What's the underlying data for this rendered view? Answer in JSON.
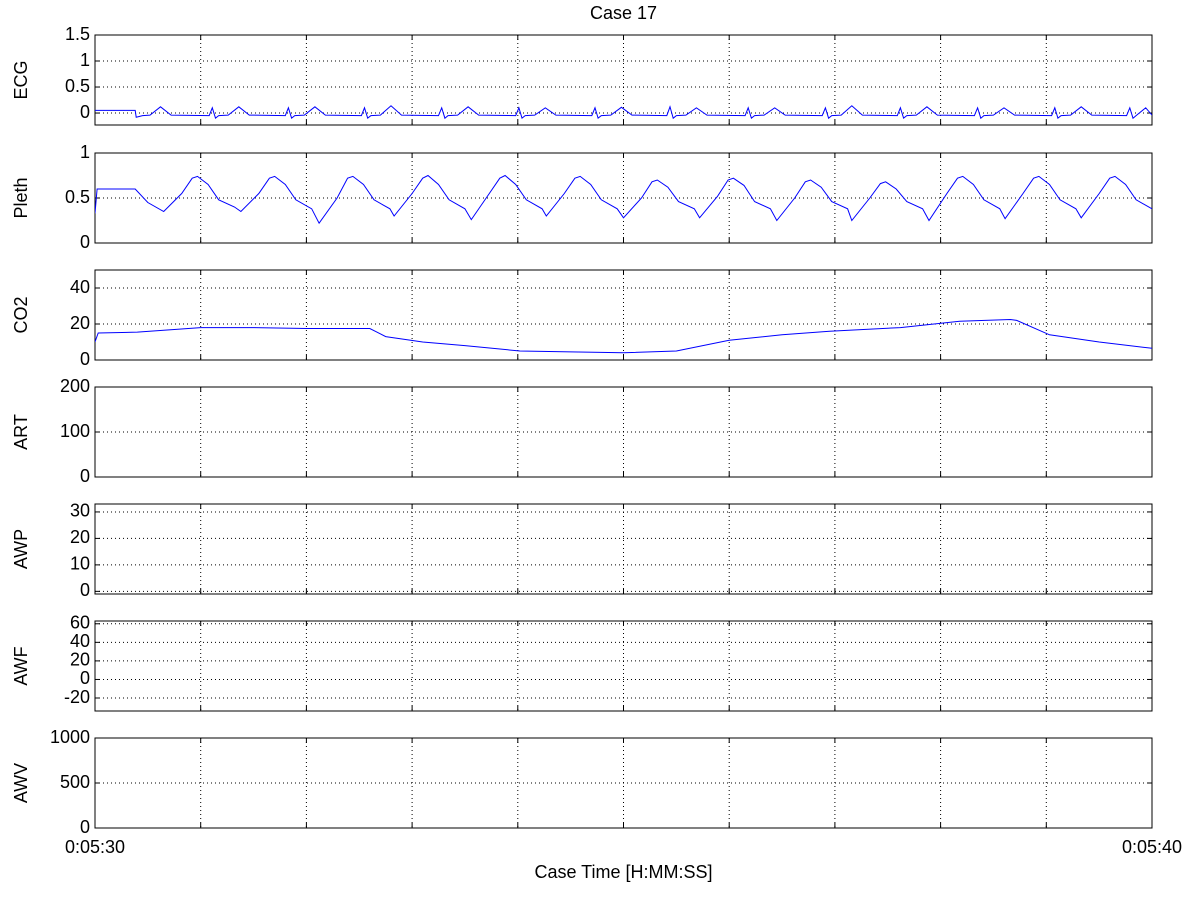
{
  "chart_data": [
    {
      "type": "line",
      "title": "Case 17",
      "ylabel": "ECG",
      "color": "#0000ff",
      "grid": true,
      "xlim": [
        330,
        340
      ],
      "xticks": [
        {
          "value": 331,
          "label": null
        },
        {
          "value": 332,
          "label": null
        },
        {
          "value": 333,
          "label": null
        },
        {
          "value": 334,
          "label": null
        },
        {
          "value": 335,
          "label": null
        },
        {
          "value": 336,
          "label": null
        },
        {
          "value": 337,
          "label": null
        },
        {
          "value": 338,
          "label": null
        },
        {
          "value": 339,
          "label": null
        }
      ],
      "ylim": [
        -0.23,
        1.5
      ],
      "yticks": [
        0,
        0.5,
        1,
        1.5
      ],
      "x": [
        330,
        330.38,
        330.39,
        330.45,
        330.52,
        330.62,
        330.72,
        331.08,
        331.11,
        331.14,
        331.17,
        331.26,
        331.36,
        331.46,
        331.8,
        331.83,
        331.86,
        331.89,
        331.98,
        332.08,
        332.18,
        332.52,
        332.55,
        332.58,
        332.61,
        332.7,
        332.8,
        332.9,
        333.25,
        333.28,
        333.31,
        333.34,
        333.43,
        333.53,
        333.63,
        333.98,
        334.01,
        334.04,
        334.07,
        334.16,
        334.26,
        334.36,
        334.7,
        334.73,
        334.76,
        334.79,
        334.88,
        334.98,
        335.08,
        335.41,
        335.44,
        335.47,
        335.5,
        335.59,
        335.69,
        335.79,
        336.15,
        336.18,
        336.21,
        336.24,
        336.33,
        336.43,
        336.53,
        336.88,
        336.91,
        336.94,
        336.97,
        337.06,
        337.16,
        337.26,
        337.59,
        337.62,
        337.65,
        337.68,
        337.77,
        337.87,
        337.97,
        338.32,
        338.35,
        338.38,
        338.41,
        338.5,
        338.6,
        338.7,
        339.05,
        339.08,
        339.11,
        339.14,
        339.23,
        339.33,
        339.43,
        339.76,
        339.79,
        339.82,
        339.85,
        339.94,
        340
      ],
      "values": [
        0.05,
        0.05,
        -0.08,
        -0.05,
        -0.04,
        0.12,
        -0.04,
        -0.05,
        0.1,
        -0.1,
        -0.05,
        -0.04,
        0.12,
        -0.04,
        -0.05,
        0.1,
        -0.1,
        -0.05,
        -0.04,
        0.12,
        -0.04,
        -0.05,
        0.1,
        -0.1,
        -0.05,
        -0.04,
        0.14,
        -0.04,
        -0.05,
        0.1,
        -0.1,
        -0.05,
        -0.04,
        0.12,
        -0.04,
        -0.05,
        0.1,
        -0.1,
        -0.05,
        -0.04,
        0.1,
        -0.04,
        -0.05,
        0.1,
        -0.1,
        -0.05,
        -0.04,
        0.11,
        -0.04,
        -0.05,
        0.12,
        -0.1,
        -0.05,
        -0.04,
        0.1,
        -0.04,
        -0.05,
        0.1,
        -0.1,
        -0.05,
        -0.04,
        0.1,
        -0.04,
        -0.05,
        0.1,
        -0.1,
        -0.05,
        -0.04,
        0.14,
        -0.04,
        -0.05,
        0.1,
        -0.1,
        -0.05,
        -0.04,
        0.12,
        -0.04,
        -0.05,
        0.1,
        -0.1,
        -0.05,
        -0.04,
        0.1,
        -0.04,
        -0.05,
        0.1,
        -0.1,
        -0.05,
        -0.04,
        0.12,
        -0.04,
        -0.05,
        0.1,
        -0.1,
        -0.05,
        0.1,
        -0.04
      ]
    },
    {
      "type": "line",
      "ylabel": "Pleth",
      "color": "#0000ff",
      "grid": true,
      "xlim": [
        330,
        340
      ],
      "xticks": [
        {
          "value": 331,
          "label": null
        },
        {
          "value": 332,
          "label": null
        },
        {
          "value": 333,
          "label": null
        },
        {
          "value": 334,
          "label": null
        },
        {
          "value": 335,
          "label": null
        },
        {
          "value": 336,
          "label": null
        },
        {
          "value": 337,
          "label": null
        },
        {
          "value": 338,
          "label": null
        },
        {
          "value": 339,
          "label": null
        }
      ],
      "ylim": [
        0,
        1
      ],
      "yticks": [
        0,
        0.5,
        1
      ],
      "x": [
        330,
        330.02,
        330.38,
        330.5,
        330.65,
        330.82,
        330.92,
        330.97,
        331.07,
        331.17,
        331.32,
        331.38,
        331.55,
        331.65,
        331.7,
        331.8,
        331.9,
        332.05,
        332.12,
        332.29,
        332.39,
        332.44,
        332.54,
        332.64,
        332.79,
        332.83,
        333,
        333.1,
        333.15,
        333.25,
        333.35,
        333.5,
        333.56,
        333.73,
        333.83,
        333.88,
        333.98,
        334.08,
        334.23,
        334.27,
        334.44,
        334.54,
        334.59,
        334.69,
        334.79,
        334.94,
        335,
        335.17,
        335.27,
        335.32,
        335.42,
        335.52,
        335.67,
        335.72,
        335.89,
        335.99,
        336.04,
        336.14,
        336.24,
        336.39,
        336.45,
        336.62,
        336.72,
        336.77,
        336.87,
        336.97,
        337.12,
        337.16,
        337.33,
        337.43,
        337.48,
        337.58,
        337.68,
        337.83,
        337.89,
        338.06,
        338.16,
        338.21,
        338.31,
        338.41,
        338.56,
        338.61,
        338.78,
        338.88,
        338.93,
        339.03,
        339.13,
        339.28,
        339.33,
        339.5,
        339.6,
        339.65,
        339.75,
        339.85,
        340
      ],
      "values": [
        0.33,
        0.6,
        0.6,
        0.45,
        0.35,
        0.55,
        0.72,
        0.74,
        0.65,
        0.48,
        0.4,
        0.35,
        0.55,
        0.72,
        0.74,
        0.65,
        0.48,
        0.38,
        0.22,
        0.5,
        0.72,
        0.74,
        0.65,
        0.48,
        0.38,
        0.3,
        0.55,
        0.72,
        0.75,
        0.65,
        0.48,
        0.38,
        0.26,
        0.55,
        0.72,
        0.75,
        0.65,
        0.48,
        0.38,
        0.3,
        0.55,
        0.72,
        0.74,
        0.65,
        0.48,
        0.38,
        0.28,
        0.5,
        0.68,
        0.7,
        0.62,
        0.46,
        0.38,
        0.28,
        0.52,
        0.7,
        0.72,
        0.64,
        0.46,
        0.38,
        0.25,
        0.5,
        0.68,
        0.7,
        0.62,
        0.46,
        0.38,
        0.25,
        0.5,
        0.66,
        0.68,
        0.6,
        0.46,
        0.38,
        0.25,
        0.55,
        0.72,
        0.74,
        0.65,
        0.48,
        0.38,
        0.27,
        0.55,
        0.72,
        0.74,
        0.65,
        0.48,
        0.38,
        0.28,
        0.55,
        0.72,
        0.74,
        0.65,
        0.48,
        0.38
      ]
    },
    {
      "type": "line",
      "ylabel": "CO2",
      "color": "#0000ff",
      "grid": true,
      "xlim": [
        330,
        340
      ],
      "xticks": [
        {
          "value": 331,
          "label": null
        },
        {
          "value": 332,
          "label": null
        },
        {
          "value": 333,
          "label": null
        },
        {
          "value": 334,
          "label": null
        },
        {
          "value": 335,
          "label": null
        },
        {
          "value": 336,
          "label": null
        },
        {
          "value": 337,
          "label": null
        },
        {
          "value": 338,
          "label": null
        },
        {
          "value": 339,
          "label": null
        }
      ],
      "ylim": [
        0,
        50
      ],
      "yticks": [
        0,
        20,
        40
      ],
      "x": [
        330,
        330.03,
        330.4,
        331,
        331.5,
        332,
        332.6,
        332.65,
        332.75,
        333.1,
        333.5,
        334.02,
        334.5,
        335,
        335.5,
        336,
        336.5,
        336.95,
        337.62,
        338.18,
        338.66,
        338.72,
        339.03,
        339.5,
        340
      ],
      "values": [
        10,
        15,
        15.5,
        18,
        18,
        17.5,
        17.5,
        16,
        13,
        10,
        8,
        5,
        4.5,
        4,
        5,
        11,
        14,
        16,
        18,
        21.5,
        22.5,
        22,
        14,
        10,
        6.5
      ]
    },
    {
      "type": "line",
      "ylabel": "ART",
      "grid": true,
      "xlim": [
        330,
        340
      ],
      "xticks": [
        {
          "value": 331,
          "label": null
        },
        {
          "value": 332,
          "label": null
        },
        {
          "value": 333,
          "label": null
        },
        {
          "value": 334,
          "label": null
        },
        {
          "value": 335,
          "label": null
        },
        {
          "value": 336,
          "label": null
        },
        {
          "value": 337,
          "label": null
        },
        {
          "value": 338,
          "label": null
        },
        {
          "value": 339,
          "label": null
        }
      ],
      "ylim": [
        0,
        200
      ],
      "yticks": [
        0,
        100,
        200
      ]
    },
    {
      "type": "line",
      "ylabel": "AWP",
      "grid": true,
      "xlim": [
        330,
        340
      ],
      "xticks": [
        {
          "value": 331,
          "label": null
        },
        {
          "value": 332,
          "label": null
        },
        {
          "value": 333,
          "label": null
        },
        {
          "value": 334,
          "label": null
        },
        {
          "value": 335,
          "label": null
        },
        {
          "value": 336,
          "label": null
        },
        {
          "value": 337,
          "label": null
        },
        {
          "value": 338,
          "label": null
        },
        {
          "value": 339,
          "label": null
        }
      ],
      "ylim": [
        -1,
        33
      ],
      "yticks": [
        0,
        10,
        20,
        30
      ]
    },
    {
      "type": "line",
      "ylabel": "AWF",
      "grid": true,
      "xlim": [
        330,
        340
      ],
      "xticks": [
        {
          "value": 331,
          "label": null
        },
        {
          "value": 332,
          "label": null
        },
        {
          "value": 333,
          "label": null
        },
        {
          "value": 334,
          "label": null
        },
        {
          "value": 335,
          "label": null
        },
        {
          "value": 336,
          "label": null
        },
        {
          "value": 337,
          "label": null
        },
        {
          "value": 338,
          "label": null
        },
        {
          "value": 339,
          "label": null
        }
      ],
      "ylim": [
        -34,
        63
      ],
      "yticks": [
        -20,
        0,
        20,
        40,
        60
      ]
    },
    {
      "type": "line",
      "ylabel": "AWV",
      "xlabel": "Case Time [H:MM:SS]",
      "grid": true,
      "xlim": [
        330,
        340
      ],
      "xticks": [
        {
          "value": 330,
          "label": "0:05:30"
        },
        {
          "value": 331,
          "label": null
        },
        {
          "value": 332,
          "label": null
        },
        {
          "value": 333,
          "label": null
        },
        {
          "value": 334,
          "label": null
        },
        {
          "value": 335,
          "label": null
        },
        {
          "value": 336,
          "label": null
        },
        {
          "value": 337,
          "label": null
        },
        {
          "value": 338,
          "label": null
        },
        {
          "value": 339,
          "label": null
        },
        {
          "value": 340,
          "label": "0:05:40"
        }
      ],
      "ylim": [
        0,
        1000
      ],
      "yticks": [
        0,
        500,
        1000
      ]
    }
  ]
}
